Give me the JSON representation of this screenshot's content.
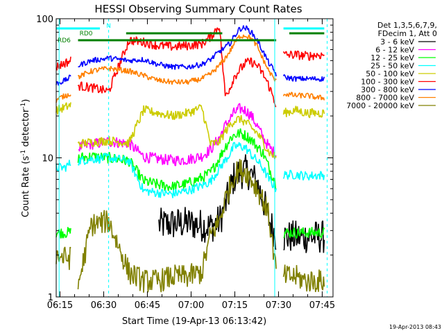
{
  "chart_data": {
    "type": "line",
    "title": "HESSI Observing Summary Count Rates",
    "xlabel": "Start Time (19-Apr-13 06:13:42)",
    "ylabel_main": "Count Rate (s",
    "ylabel_sup1": "-1",
    "ylabel_mid": " detector",
    "ylabel_sup2": "-1",
    "ylabel_end": ")",
    "yscale": "log",
    "ylim": [
      1,
      100
    ],
    "xlim_minutes": [
      0,
      95
    ],
    "x_tick_labels": [
      "06:15",
      "06:30",
      "06:45",
      "07:00",
      "07:15",
      "07:30",
      "07:45"
    ],
    "x_tick_minutes": [
      1.3,
      16.3,
      31.3,
      46.3,
      61.3,
      76.3,
      91.3
    ],
    "y_tick_labels": [
      "1",
      "10",
      "100"
    ],
    "y_tick_values": [
      1,
      10,
      100
    ],
    "legend_header": [
      "Det 1,3,5,6,7,9,",
      "FDecim 1, Att 0"
    ],
    "timestamp": "19-Apr-2013 08:43",
    "annotations": {
      "rd0": "RD0",
      "rd6": "RD6",
      "n": "N"
    },
    "gaps_minutes": [
      [
        5,
        7.5
      ],
      [
        75.5,
        78
      ]
    ],
    "series": [
      {
        "name": "3 - 6 keV",
        "color": "#000000",
        "noise": 0.35,
        "x": [
          7.5,
          12,
          18,
          25,
          35,
          45,
          53,
          56,
          58,
          60,
          61,
          63,
          65,
          67,
          69,
          71,
          73,
          75.5
        ],
        "y": [
          null,
          null,
          null,
          null,
          3.3,
          3.4,
          3.2,
          3.5,
          4.5,
          6.2,
          7.2,
          7.8,
          8.0,
          7.5,
          6.5,
          5.0,
          3.6,
          2.7
        ]
      },
      {
        "name": "6 - 12 keV",
        "color": "#ff00ff",
        "noise": 0.12,
        "x": [
          3,
          5,
          7.5,
          12,
          18,
          25,
          30,
          35,
          40,
          45,
          50,
          53,
          56,
          58,
          60,
          61,
          63,
          65,
          67,
          69,
          71,
          73,
          75.5,
          78,
          82,
          86,
          90
        ],
        "y": [
          null,
          null,
          11.8,
          12.5,
          13.1,
          12.7,
          10.2,
          9.8,
          9.6,
          9.7,
          10.3,
          11.5,
          14,
          17,
          19.5,
          21,
          22.5,
          22,
          20,
          17,
          14,
          12,
          10.5,
          null,
          null,
          null,
          null
        ]
      },
      {
        "name": "12 - 25 keV",
        "color": "#00ff00",
        "noise": 0.12,
        "x": [
          0,
          3,
          5,
          7.5,
          12,
          18,
          25,
          30,
          35,
          40,
          45,
          50,
          53,
          56,
          58,
          60,
          61,
          63,
          65,
          67,
          69,
          71,
          73,
          75.5,
          78,
          82,
          86,
          90
        ],
        "y": [
          2.9,
          2.9,
          2.9,
          10,
          10.2,
          10,
          9.5,
          6.8,
          6.4,
          6.2,
          6.5,
          7.2,
          7.8,
          10,
          12,
          14,
          14.5,
          15,
          14.5,
          13.5,
          12,
          10.8,
          8.5,
          6.5,
          2.9,
          2.9,
          2.9,
          2.9
        ]
      },
      {
        "name": "25 - 50 keV",
        "color": "#00ffff",
        "noise": 0.1,
        "x": [
          0,
          3,
          5,
          7.5,
          12,
          18,
          25,
          30,
          35,
          40,
          45,
          50,
          53,
          56,
          58,
          60,
          61,
          63,
          65,
          67,
          69,
          71,
          73,
          75.5,
          78,
          82,
          86,
          90
        ],
        "y": [
          8.5,
          8.5,
          9.2,
          9.5,
          9.8,
          10,
          9.5,
          5.8,
          5.6,
          5.5,
          5.8,
          6.3,
          6.8,
          8.4,
          9.6,
          11,
          12,
          12.2,
          11.8,
          10.5,
          9.5,
          8.4,
          7.0,
          6.0,
          7.5,
          7.6,
          7.4,
          7.5
        ]
      },
      {
        "name": "50 - 100 keV",
        "color": "#cccc00",
        "noise": 0.1,
        "x": [
          0,
          3,
          5,
          7.5,
          12,
          18,
          25,
          30,
          35,
          40,
          45,
          50,
          53,
          56,
          58,
          60,
          61,
          63,
          65,
          67,
          69,
          71,
          73,
          75.5,
          78,
          82,
          86,
          90
        ],
        "y": [
          22,
          23,
          24,
          12.5,
          13,
          13.3,
          12.8,
          22,
          21,
          20,
          21,
          23,
          12.5,
          13,
          15.5,
          17.5,
          18.5,
          19,
          18,
          16.5,
          15,
          13,
          11,
          10,
          21,
          22,
          21,
          21
        ]
      },
      {
        "name": "100 - 300 keV",
        "color": "#ff0000",
        "noise": 0.1,
        "x": [
          0,
          3,
          5,
          7.5,
          12,
          18,
          25,
          30,
          35,
          40,
          45,
          50,
          53,
          56,
          58,
          60,
          61,
          63,
          65,
          67,
          69,
          71,
          73,
          75.5,
          78,
          82,
          86,
          90
        ],
        "y": [
          45,
          48,
          50,
          33,
          32,
          30,
          70,
          68,
          64,
          63,
          64,
          66,
          74,
          90,
          28,
          33,
          38,
          43,
          48,
          49,
          46,
          40,
          33,
          24,
          55,
          55,
          54,
          55
        ]
      },
      {
        "name": "300 - 800 keV",
        "color": "#0000ff",
        "noise": 0.06,
        "x": [
          0,
          3,
          5,
          7.5,
          12,
          18,
          25,
          30,
          35,
          40,
          45,
          50,
          53,
          56,
          58,
          60,
          61,
          63,
          65,
          67,
          69,
          71,
          73,
          75.5,
          78,
          82,
          86,
          90
        ],
        "y": [
          34,
          36,
          38,
          46,
          50,
          52,
          50,
          51,
          47,
          45,
          45,
          47,
          51,
          58,
          62,
          68,
          74,
          85,
          86,
          80,
          70,
          58,
          48,
          40,
          38,
          37,
          37,
          37
        ]
      },
      {
        "name": "800 - 7000 keV",
        "color": "#ff8000",
        "noise": 0.06,
        "x": [
          0,
          3,
          5,
          7.5,
          12,
          18,
          25,
          30,
          35,
          40,
          45,
          50,
          53,
          56,
          58,
          60,
          61,
          63,
          65,
          67,
          69,
          71,
          73,
          75.5,
          78,
          82,
          86,
          90
        ],
        "y": [
          26,
          28,
          29,
          38,
          42,
          44,
          42,
          39,
          36,
          35,
          35,
          37,
          40,
          46,
          52,
          60,
          66,
          75,
          76,
          72,
          63,
          51,
          42,
          35,
          29,
          28,
          28,
          27
        ]
      },
      {
        "name": "7000 - 20000 keV",
        "color": "#808000",
        "noise": 0.25,
        "x": [
          0,
          3,
          5,
          7.5,
          12,
          18,
          25,
          30,
          35,
          40,
          45,
          50,
          53,
          56,
          58,
          60,
          61,
          63,
          65,
          67,
          69,
          71,
          73,
          75.5,
          78,
          82,
          86,
          90
        ],
        "y": [
          2.0,
          1.9,
          1.9,
          1.2,
          3.3,
          3.5,
          1.5,
          1.3,
          1.3,
          1.4,
          1.4,
          1.5,
          2.8,
          3.5,
          5.0,
          6.5,
          7.5,
          8.2,
          8.0,
          7.0,
          6.0,
          5.0,
          3.8,
          1.5,
          1.4,
          1.4,
          1.3,
          1.3
        ]
      }
    ]
  }
}
